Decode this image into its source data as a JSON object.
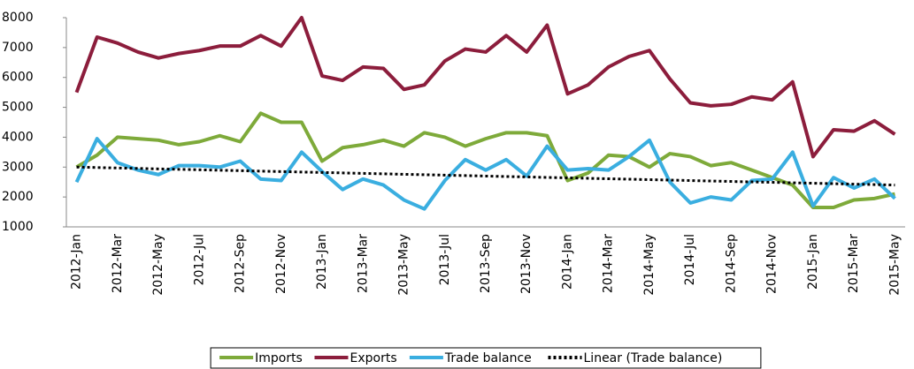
{
  "chart_data": {
    "type": "line",
    "categories": [
      "2012-Jan",
      null,
      "2012-Mar",
      null,
      "2012-May",
      null,
      "2012-Jul",
      null,
      "2012-Sep",
      null,
      "2012-Nov",
      null,
      "2013-Jan",
      null,
      "2013-Mar",
      null,
      "2013-May",
      null,
      "2013-Jul",
      null,
      "2013-Sep",
      null,
      "2013-Nov",
      null,
      "2014-Jan",
      null,
      "2014-Mar",
      null,
      "2014-May",
      null,
      "2014-Jul",
      null,
      "2014-Sep",
      null,
      "2014-Nov",
      null,
      "2015-Jan",
      null,
      "2015-Mar",
      null,
      "2015-May"
    ],
    "series": [
      {
        "name": "Imports",
        "color": "#7eaa3a",
        "values": [
          3000,
          3400,
          4000,
          3950,
          3900,
          3750,
          3850,
          4050,
          3850,
          4800,
          4500,
          4500,
          3200,
          3650,
          3750,
          3900,
          3700,
          4150,
          4000,
          3700,
          3950,
          4150,
          4150,
          4050,
          2550,
          2800,
          3400,
          3350,
          3000,
          3450,
          3350,
          3050,
          3150,
          2900,
          2650,
          2400,
          1650,
          1650,
          1900,
          1950,
          2100
        ]
      },
      {
        "name": "Exports",
        "color": "#8c1d3c",
        "values": [
          5500,
          7350,
          7150,
          6850,
          6650,
          6800,
          6900,
          7050,
          7050,
          7400,
          7050,
          8000,
          6050,
          5900,
          6350,
          6300,
          5600,
          5750,
          6550,
          6950,
          6850,
          7400,
          6850,
          7750,
          5450,
          5750,
          6350,
          6700,
          6900,
          5950,
          5150,
          5050,
          5100,
          5350,
          5250,
          5850,
          3350,
          4250,
          4200,
          4550,
          4100
        ]
      },
      {
        "name": "Trade balance",
        "color": "#3aaee0",
        "values": [
          2500,
          3950,
          3150,
          2900,
          2750,
          3050,
          3050,
          3000,
          3200,
          2600,
          2550,
          3500,
          2850,
          2250,
          2600,
          2400,
          1900,
          1600,
          2550,
          3250,
          2900,
          3250,
          2700,
          3700,
          2900,
          2950,
          2900,
          3350,
          3900,
          2500,
          1800,
          2000,
          1900,
          2550,
          2600,
          3500,
          1700,
          2650,
          2300,
          2600,
          1950
        ]
      },
      {
        "name": "Linear (Trade balance)",
        "color": "#000000",
        "dashed": true,
        "values": [
          3000,
          2985,
          2970,
          2955,
          2940,
          2925,
          2910,
          2895,
          2880,
          2865,
          2850,
          2835,
          2820,
          2805,
          2790,
          2775,
          2760,
          2745,
          2730,
          2715,
          2700,
          2685,
          2670,
          2655,
          2640,
          2625,
          2610,
          2595,
          2580,
          2565,
          2550,
          2535,
          2520,
          2505,
          2490,
          2475,
          2460,
          2445,
          2430,
          2415,
          2400
        ]
      }
    ],
    "ylim": [
      1000,
      8000
    ],
    "yticks": [
      1000,
      2000,
      3000,
      4000,
      5000,
      6000,
      7000,
      8000
    ],
    "grid": false,
    "legend": "bottom"
  }
}
